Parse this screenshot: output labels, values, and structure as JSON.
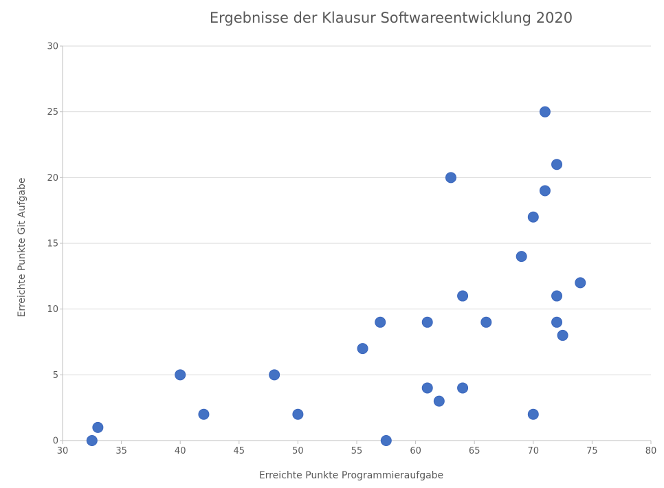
{
  "chart_data": {
    "type": "scatter",
    "title": "Ergebnisse der Klausur Softwareentwicklung 2020",
    "xlabel": "Erreichte Punkte Programmieraufgabe",
    "ylabel": "Erreichte Punkte Git Aufgabe",
    "xlim": [
      30,
      80
    ],
    "ylim": [
      0,
      30
    ],
    "xticks": [
      30,
      35,
      40,
      45,
      50,
      55,
      60,
      65,
      70,
      75,
      80
    ],
    "yticks": [
      0,
      5,
      10,
      15,
      20,
      25,
      30
    ],
    "grid": "horizontal",
    "legend": "none",
    "marker_color": "#4472c4",
    "series": [
      {
        "points": [
          {
            "x": 32.5,
            "y": 0
          },
          {
            "x": 33,
            "y": 1
          },
          {
            "x": 40,
            "y": 5
          },
          {
            "x": 42,
            "y": 2
          },
          {
            "x": 48,
            "y": 5
          },
          {
            "x": 50,
            "y": 2
          },
          {
            "x": 55.5,
            "y": 7
          },
          {
            "x": 57,
            "y": 9
          },
          {
            "x": 57.5,
            "y": 0
          },
          {
            "x": 61,
            "y": 9
          },
          {
            "x": 61,
            "y": 4
          },
          {
            "x": 62,
            "y": 3
          },
          {
            "x": 63,
            "y": 20
          },
          {
            "x": 64,
            "y": 11
          },
          {
            "x": 64,
            "y": 4
          },
          {
            "x": 66,
            "y": 9
          },
          {
            "x": 69,
            "y": 14
          },
          {
            "x": 70,
            "y": 17
          },
          {
            "x": 70,
            "y": 2
          },
          {
            "x": 71,
            "y": 25
          },
          {
            "x": 71,
            "y": 19
          },
          {
            "x": 72,
            "y": 21
          },
          {
            "x": 72,
            "y": 11
          },
          {
            "x": 72,
            "y": 9
          },
          {
            "x": 72.5,
            "y": 8
          },
          {
            "x": 74,
            "y": 12
          }
        ]
      }
    ]
  }
}
